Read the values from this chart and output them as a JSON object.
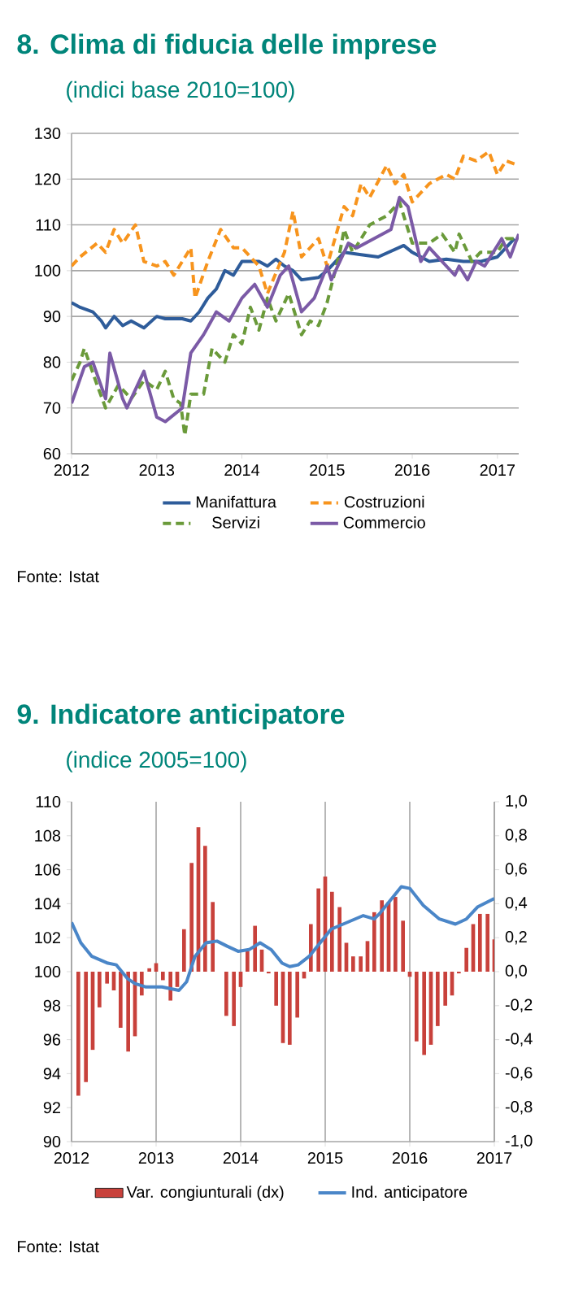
{
  "chart_data": [
    {
      "type": "line",
      "title": "8. Clima di fiducia delle imprese",
      "subtitle": "(indici base 2010=100)",
      "xlim": [
        2012,
        2017.25
      ],
      "xticks": [
        2012,
        2013,
        2014,
        2015,
        2016,
        2017
      ],
      "ylim": [
        60,
        130
      ],
      "yticks": [
        60,
        70,
        80,
        90,
        100,
        110,
        120,
        130
      ],
      "grid": "y",
      "legend": "bottom",
      "annotations": [
        "Fonte: Istat"
      ],
      "series": [
        {
          "name": "Manifattura",
          "color": "#2e5c9a",
          "line_style": "solid",
          "x": [
            2012.0,
            2012.1,
            2012.25,
            2012.35,
            2012.4,
            2012.5,
            2012.6,
            2012.7,
            2012.85,
            2013.0,
            2013.1,
            2013.3,
            2013.4,
            2013.5,
            2013.6,
            2013.7,
            2013.8,
            2013.9,
            2014.0,
            2014.2,
            2014.3,
            2014.4,
            2014.5,
            2014.6,
            2014.7,
            2014.9,
            2015.0,
            2015.2,
            2015.4,
            2015.6,
            2015.9,
            2016.0,
            2016.2,
            2016.4,
            2016.6,
            2016.8,
            2017.0,
            2017.1,
            2017.2
          ],
          "values": [
            93,
            92,
            91,
            89,
            87.5,
            90,
            88,
            89,
            87.5,
            90,
            89.5,
            89.5,
            89,
            91,
            94,
            96,
            100,
            99,
            102,
            102,
            101,
            102.5,
            101,
            100,
            98,
            98.5,
            100,
            104,
            103.5,
            103,
            105.5,
            104,
            102,
            102.5,
            102,
            102,
            103,
            105,
            107
          ]
        },
        {
          "name": "Costruzioni",
          "color": "#f7941d",
          "line_style": "dashed",
          "x": [
            2012.0,
            2012.1,
            2012.3,
            2012.4,
            2012.5,
            2012.6,
            2012.75,
            2012.85,
            2013.0,
            2013.1,
            2013.2,
            2013.4,
            2013.45,
            2013.6,
            2013.75,
            2013.9,
            2014.0,
            2014.2,
            2014.3,
            2014.5,
            2014.6,
            2014.7,
            2014.9,
            2015.0,
            2015.2,
            2015.3,
            2015.4,
            2015.5,
            2015.7,
            2015.8,
            2015.9,
            2016.0,
            2016.2,
            2016.4,
            2016.5,
            2016.6,
            2016.75,
            2016.9,
            2017.0,
            2017.1,
            2017.25
          ],
          "values": [
            101,
            103,
            106,
            104,
            109,
            106,
            110,
            102,
            101,
            102,
            99,
            105,
            94,
            102,
            109,
            105,
            105,
            101,
            95,
            104,
            113,
            103,
            107,
            101,
            114,
            112,
            119,
            116,
            123,
            119,
            121,
            115,
            119,
            121,
            120,
            125,
            124,
            126,
            121,
            124,
            123
          ]
        },
        {
          "name": "Servizi",
          "color": "#6a9a3a",
          "line_style": "dashed",
          "x": [
            2012.0,
            2012.1,
            2012.15,
            2012.3,
            2012.4,
            2012.55,
            2012.7,
            2012.85,
            2013.0,
            2013.1,
            2013.2,
            2013.28,
            2013.33,
            2013.4,
            2013.55,
            2013.65,
            2013.8,
            2013.9,
            2014.0,
            2014.1,
            2014.2,
            2014.3,
            2014.4,
            2014.55,
            2014.7,
            2014.8,
            2014.9,
            2015.0,
            2015.15,
            2015.2,
            2015.3,
            2015.5,
            2015.7,
            2015.85,
            2016.0,
            2016.2,
            2016.35,
            2016.5,
            2016.55,
            2016.7,
            2016.8,
            2017.0,
            2017.1,
            2017.25
          ],
          "values": [
            76,
            80,
            83,
            75,
            70,
            75,
            72,
            76,
            74,
            78,
            72,
            71,
            64,
            73,
            73,
            83,
            80,
            86,
            84,
            92,
            87,
            94,
            89,
            95,
            86,
            89,
            88,
            93,
            104,
            109,
            104,
            110,
            112,
            115,
            106,
            106,
            108,
            104,
            108,
            102,
            104,
            104,
            107,
            107
          ]
        },
        {
          "name": "Commercio",
          "color": "#7b5aa6",
          "line_style": "solid",
          "x": [
            2012.0,
            2012.15,
            2012.25,
            2012.4,
            2012.45,
            2012.6,
            2012.65,
            2012.85,
            2013.0,
            2013.1,
            2013.3,
            2013.4,
            2013.55,
            2013.7,
            2013.85,
            2014.0,
            2014.15,
            2014.3,
            2014.45,
            2014.55,
            2014.7,
            2014.85,
            2015.0,
            2015.05,
            2015.25,
            2015.35,
            2015.55,
            2015.75,
            2015.85,
            2015.95,
            2016.1,
            2016.2,
            2016.4,
            2016.5,
            2016.55,
            2016.65,
            2016.75,
            2016.85,
            2016.95,
            2017.05,
            2017.15,
            2017.25
          ],
          "values": [
            71,
            79,
            80,
            72,
            82,
            72,
            70,
            78,
            68,
            67,
            70,
            82,
            86,
            91,
            89,
            94,
            97,
            92,
            99,
            101,
            91,
            94,
            101,
            98,
            106,
            105,
            107,
            109,
            116,
            114,
            102,
            105,
            101,
            99,
            101,
            98,
            102,
            101,
            104,
            107,
            103,
            108
          ]
        }
      ]
    },
    {
      "type": "line",
      "title": "9. Indicatore anticipatore",
      "subtitle": "(indice 2005=100)",
      "xlim": [
        2012,
        2017
      ],
      "xticks": [
        2012,
        2013,
        2014,
        2015,
        2016,
        2017
      ],
      "ylim": [
        90,
        110
      ],
      "yticks": [
        90,
        92,
        94,
        96,
        98,
        100,
        102,
        104,
        106,
        108,
        110
      ],
      "y2lim": [
        -1.0,
        1.0
      ],
      "y2ticks": [
        {
          "value": -1.0,
          "label": "-1,0"
        },
        {
          "value": -0.8,
          "label": "-0,8"
        },
        {
          "value": -0.6,
          "label": "-0,6"
        },
        {
          "value": -0.4,
          "label": "-0,4"
        },
        {
          "value": -0.2,
          "label": "-0,2"
        },
        {
          "value": 0.0,
          "label": "0,0"
        },
        {
          "value": 0.2,
          "label": "0,2"
        },
        {
          "value": 0.4,
          "label": "0,4"
        },
        {
          "value": 0.6,
          "label": "0,6"
        },
        {
          "value": 0.8,
          "label": "0,8"
        },
        {
          "value": 1.0,
          "label": "1,0"
        }
      ],
      "grid": "x",
      "legend": "bottom",
      "annotations": [
        "Fonte: Istat"
      ],
      "series": [
        {
          "name": "Var. congiunturali (dx)",
          "type": "bar",
          "axis": "y2",
          "color": "#c8413b",
          "x": [
            2012.08,
            2012.17,
            2012.25,
            2012.33,
            2012.42,
            2012.5,
            2012.58,
            2012.67,
            2012.75,
            2012.83,
            2012.92,
            2013.0,
            2013.08,
            2013.17,
            2013.25,
            2013.33,
            2013.42,
            2013.5,
            2013.58,
            2013.67,
            2013.75,
            2013.83,
            2013.92,
            2014.0,
            2014.08,
            2014.17,
            2014.25,
            2014.33,
            2014.42,
            2014.5,
            2014.58,
            2014.67,
            2014.75,
            2014.83,
            2014.92,
            2015.0,
            2015.08,
            2015.17,
            2015.25,
            2015.33,
            2015.42,
            2015.5,
            2015.58,
            2015.67,
            2015.75,
            2015.83,
            2015.92,
            2016.0,
            2016.08,
            2016.17,
            2016.25,
            2016.33,
            2016.42,
            2016.5,
            2016.58,
            2016.67,
            2016.75,
            2016.83,
            2016.92,
            2017.0
          ],
          "values": [
            -0.73,
            -0.65,
            -0.46,
            -0.21,
            -0.07,
            -0.11,
            -0.33,
            -0.47,
            -0.38,
            -0.14,
            0.02,
            0.05,
            -0.05,
            -0.17,
            -0.09,
            0.25,
            0.64,
            0.85,
            0.74,
            0.41,
            null,
            -0.26,
            -0.32,
            -0.09,
            0.12,
            0.27,
            0.13,
            -0.01,
            -0.2,
            -0.42,
            -0.43,
            -0.27,
            -0.04,
            0.28,
            0.49,
            0.56,
            0.47,
            0.38,
            0.17,
            0.09,
            0.09,
            0.18,
            0.35,
            0.42,
            0.41,
            0.44,
            0.3,
            -0.03,
            -0.41,
            -0.49,
            -0.43,
            -0.32,
            -0.2,
            -0.14,
            -0.01,
            0.14,
            0.28,
            0.34,
            0.34,
            0.19
          ]
        },
        {
          "name": "Ind. anticipatore",
          "type": "line",
          "color": "#4a86c8",
          "line_style": "solid",
          "x": [
            2012.0,
            2012.11,
            2012.24,
            2012.43,
            2012.53,
            2012.66,
            2012.75,
            2012.88,
            2013.07,
            2013.27,
            2013.36,
            2013.46,
            2013.59,
            2013.72,
            2013.84,
            2013.97,
            2014.1,
            2014.23,
            2014.36,
            2014.49,
            2014.58,
            2014.68,
            2014.81,
            2014.94,
            2015.07,
            2015.26,
            2015.45,
            2015.58,
            2015.64,
            2015.77,
            2015.9,
            2016.0,
            2016.16,
            2016.35,
            2016.54,
            2016.67,
            2016.8,
            2017.0
          ],
          "values": [
            102.9,
            101.7,
            100.9,
            100.5,
            100.4,
            99.6,
            99.3,
            99.1,
            99.1,
            98.9,
            99.4,
            100.9,
            101.7,
            101.8,
            101.5,
            101.2,
            101.3,
            101.7,
            101.3,
            100.5,
            100.3,
            100.4,
            100.9,
            101.7,
            102.5,
            102.9,
            103.3,
            103.1,
            103.4,
            104.2,
            105.0,
            104.9,
            103.9,
            103.1,
            102.8,
            103.1,
            103.8,
            104.3
          ]
        }
      ]
    }
  ]
}
